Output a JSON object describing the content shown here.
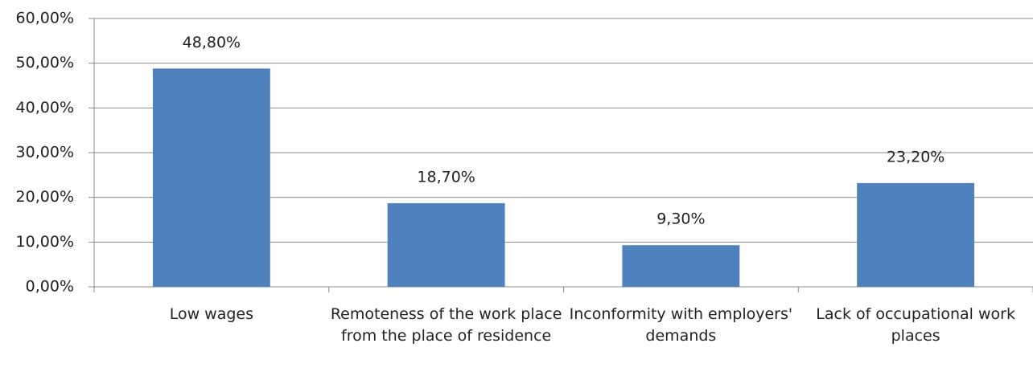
{
  "chart_data": {
    "type": "bar",
    "categories": [
      "Low wages",
      "Remoteness of the work place from the place of residence",
      "Inconformity with employers' demands",
      "Lack of occupational work places"
    ],
    "values": [
      48.8,
      18.7,
      9.3,
      23.2
    ],
    "value_labels": [
      "48,80%",
      "18,70%",
      "9,30%",
      "23,20%"
    ],
    "color": "#4f81bd",
    "ylim": [
      0,
      60
    ],
    "yticks": [
      {
        "value": 0,
        "label": "0,00%"
      },
      {
        "value": 10,
        "label": "10,00%"
      },
      {
        "value": 20,
        "label": "20,00%"
      },
      {
        "value": 30,
        "label": "30,00%"
      },
      {
        "value": 40,
        "label": "40,00%"
      },
      {
        "value": 50,
        "label": "50,00%"
      },
      {
        "value": 60,
        "label": "60,00%"
      }
    ],
    "grid": true
  }
}
